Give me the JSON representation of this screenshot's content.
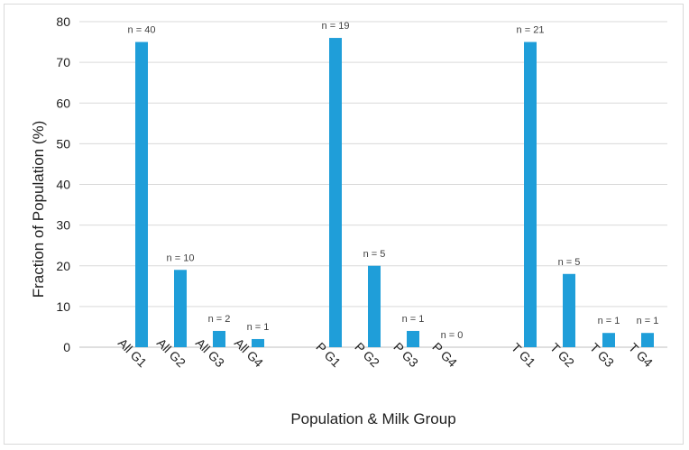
{
  "chart_data": {
    "type": "bar",
    "title": "",
    "xlabel": "Population & Milk Group",
    "ylabel": "Fraction of Population (%)",
    "ylim": [
      0,
      80
    ],
    "yticks": [
      0,
      10,
      20,
      30,
      40,
      50,
      60,
      70,
      80
    ],
    "grid": true,
    "bar_color": "#1f9ed9",
    "groups": [
      "All",
      "P",
      "T"
    ],
    "categories": [
      "All G1",
      "All G2",
      "All G3",
      "All G4",
      "P G1",
      "P G2",
      "P G3",
      "P G4",
      "T G1",
      "T G2",
      "T G3",
      "T G4"
    ],
    "values": [
      75,
      19,
      4,
      2,
      76,
      20,
      4,
      0,
      75,
      18,
      3.5,
      3.5
    ],
    "data_labels": [
      "n = 40",
      "n = 10",
      "n = 2",
      "n = 1",
      "n = 19",
      "n = 5",
      "n = 1",
      "n = 0",
      "n = 21",
      "n = 5",
      "n = 1",
      "n = 1"
    ]
  }
}
